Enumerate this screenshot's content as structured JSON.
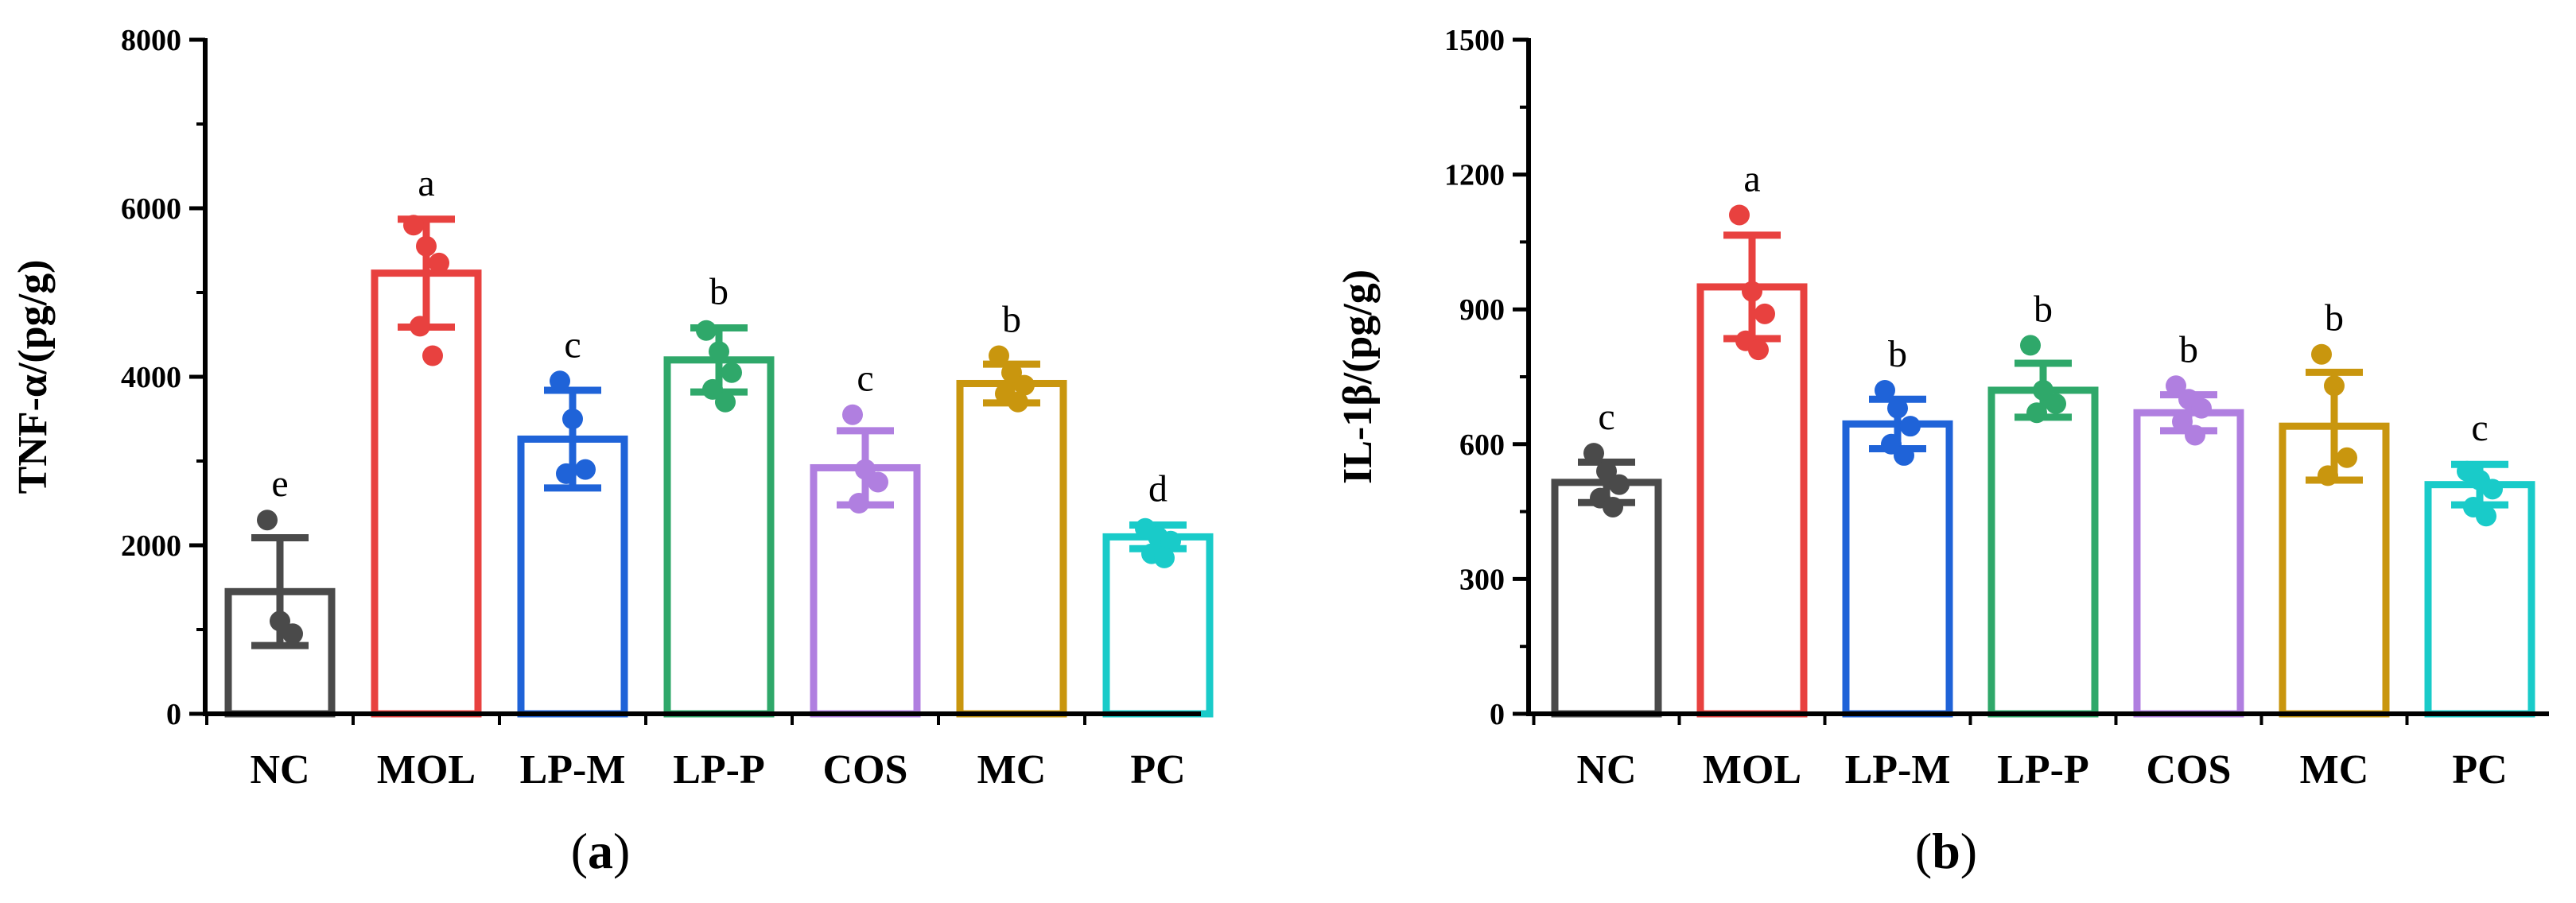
{
  "chart_data": [
    {
      "type": "bar",
      "panel": "a",
      "panel_label": "a",
      "ylabel": "TNF-α/(pg/g)",
      "ylim": [
        0,
        8000
      ],
      "yticks": [
        0,
        2000,
        4000,
        6000,
        8000
      ],
      "ytick_labels": [
        "0",
        "2000",
        "4000",
        "6000",
        "8000"
      ],
      "categories": [
        "NC",
        "MOL",
        "LP-M",
        "LP-P",
        "COS",
        "MC",
        "PC"
      ],
      "colors": [
        "#4a4a4a",
        "#e8413f",
        "#1f63d8",
        "#2fa86a",
        "#b07fe0",
        "#c9960e",
        "#19cbc9"
      ],
      "values": [
        1450,
        5230,
        3260,
        4200,
        2920,
        3920,
        2100
      ],
      "errors": [
        640,
        640,
        580,
        380,
        440,
        230,
        140
      ],
      "letters": [
        "e",
        "a",
        "c",
        "b",
        "c",
        "b",
        "d"
      ],
      "points": [
        [
          2300,
          1100,
          950
        ],
        [
          5800,
          5550,
          5350,
          4600,
          4250
        ],
        [
          3950,
          3500,
          2900,
          2850
        ],
        [
          4550,
          4300,
          4050,
          3850,
          3700
        ],
        [
          3550,
          2900,
          2750,
          2500
        ],
        [
          4250,
          4050,
          3900,
          3800,
          3700
        ],
        [
          2200,
          2100,
          2050,
          1900,
          1850
        ]
      ]
    },
    {
      "type": "bar",
      "panel": "b",
      "panel_label": "b",
      "ylabel": "IL-1β/(pg/g)",
      "ylim": [
        0,
        1500
      ],
      "yticks": [
        0,
        300,
        600,
        900,
        1200,
        1500
      ],
      "ytick_labels": [
        "0",
        "300",
        "600",
        "900",
        "1200",
        "1500"
      ],
      "categories": [
        "NC",
        "MOL",
        "LP-M",
        "LP-P",
        "COS",
        "MC",
        "PC"
      ],
      "colors": [
        "#4a4a4a",
        "#e8413f",
        "#1f63d8",
        "#2fa86a",
        "#b07fe0",
        "#c9960e",
        "#19cbc9"
      ],
      "values": [
        515,
        950,
        645,
        720,
        670,
        640,
        510
      ],
      "errors": [
        45,
        115,
        55,
        60,
        40,
        120,
        45
      ],
      "letters": [
        "c",
        "a",
        "b",
        "b",
        "b",
        "b",
        "c"
      ],
      "points": [
        [
          580,
          540,
          510,
          480,
          460
        ],
        [
          1110,
          940,
          890,
          830,
          810
        ],
        [
          720,
          680,
          640,
          600,
          575
        ],
        [
          820,
          720,
          690,
          670
        ],
        [
          730,
          700,
          680,
          650,
          620
        ],
        [
          800,
          730,
          570,
          530
        ],
        [
          540,
          520,
          500,
          460,
          440
        ]
      ]
    }
  ]
}
